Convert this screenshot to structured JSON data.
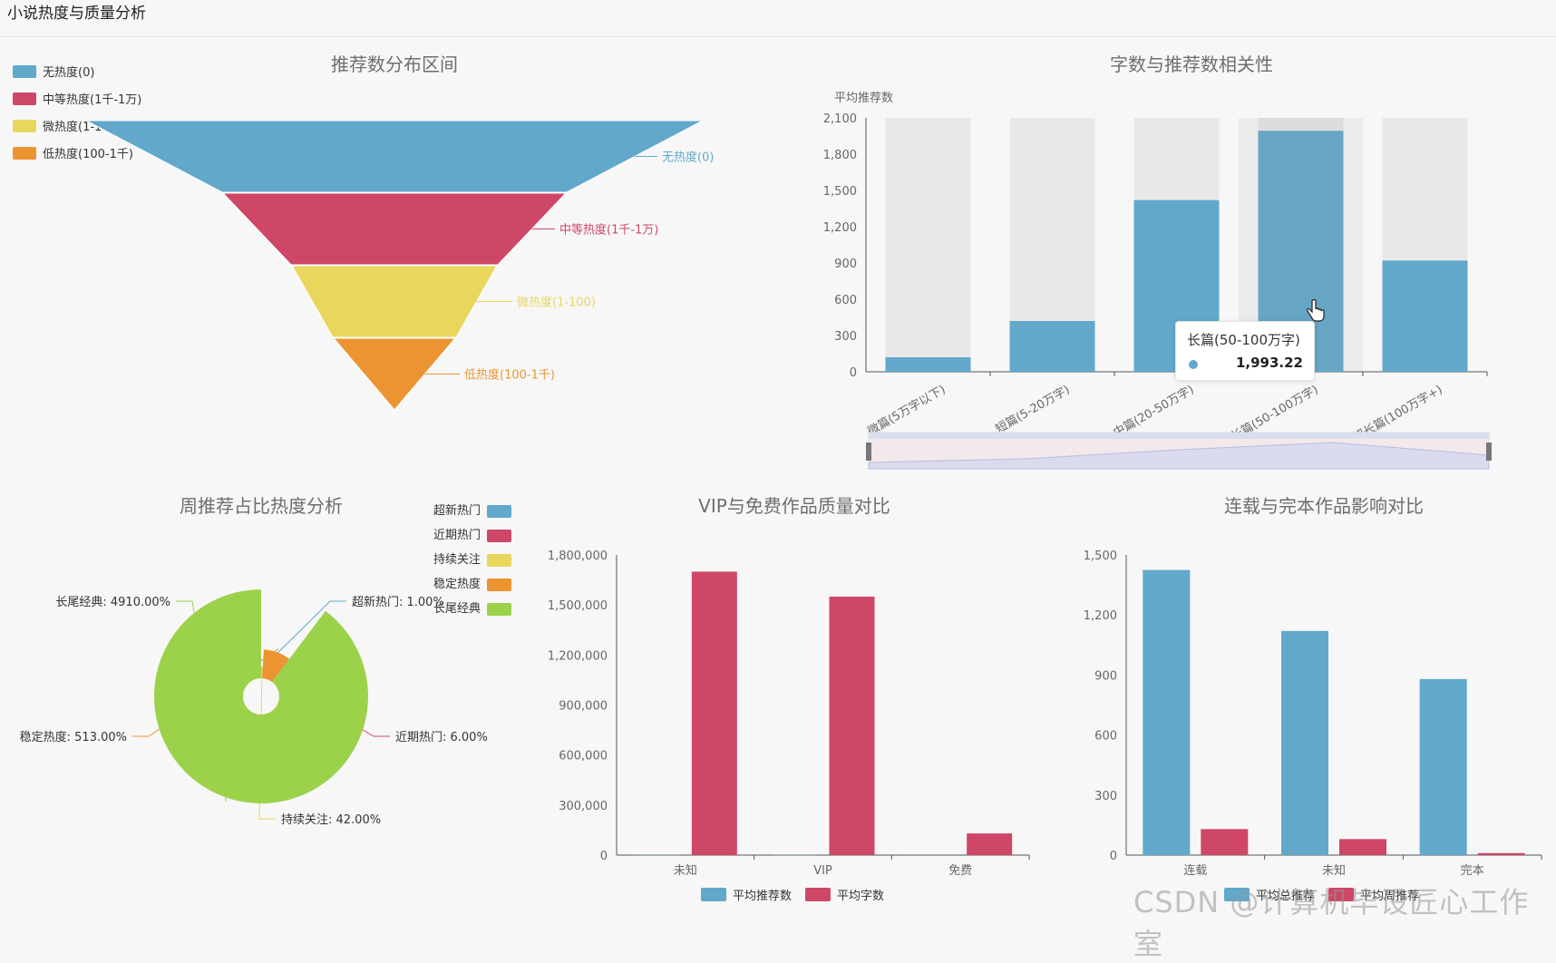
{
  "page": {
    "title": "小说热度与质量分析"
  },
  "colors": {
    "blue": "#61a8cb",
    "red": "#cf4766",
    "yellow": "#e9d65c",
    "orange": "#eb9431",
    "green": "#9bd24a"
  },
  "tooltip": {
    "name": "长篇(50-100万字)",
    "value": "1,993.22"
  },
  "watermark": "CSDN @计算机毕设匠心工作室",
  "chart_data": [
    {
      "id": "funnel",
      "type": "funnel",
      "title": "推荐数分布区间",
      "legend": [
        {
          "name": "无热度(0)",
          "color": "#61a8cb"
        },
        {
          "name": "中等热度(1千-1万)",
          "color": "#cf4766"
        },
        {
          "name": "微热度(1-100)",
          "color": "#e9d65c"
        },
        {
          "name": "低热度(100-1千)",
          "color": "#eb9431"
        }
      ],
      "stages": [
        "无热度(0)",
        "中等热度(1千-1万)",
        "微热度(1-100)",
        "低热度(100-1千)"
      ]
    },
    {
      "id": "wordcount",
      "type": "bar",
      "title": "字数与推荐数相关性",
      "ylabel": "平均推荐数",
      "ylim": [
        0,
        2100
      ],
      "yticks": [
        "0",
        "300",
        "600",
        "900",
        "1,200",
        "1,500",
        "1,800",
        "2,100"
      ],
      "categories": [
        "微篇(5万字以下)",
        "短篇(5-20万字)",
        "中篇(20-50万字)",
        "长篇(50-100万字)",
        "超长篇(100万字+)"
      ],
      "values": [
        120,
        420,
        1420,
        1993.22,
        920
      ],
      "background_bars": true,
      "datazoom": true
    },
    {
      "id": "weekly",
      "type": "pie",
      "subtype": "rose",
      "title": "周推荐占比热度分析",
      "legend": [
        "超新热门",
        "近期热门",
        "持续关注",
        "稳定热度",
        "长尾经典"
      ],
      "labels": [
        "超新热门: 1.00%",
        "近期热门: 6.00%",
        "持续关注: 42.00%",
        "稳定热度: 513.00%",
        "长尾经典: 4910.00%"
      ],
      "values": [
        1,
        6,
        42,
        513,
        4910
      ]
    },
    {
      "id": "vip",
      "type": "bar",
      "title": "VIP与免费作品质量对比",
      "categories": [
        "未知",
        "VIP",
        "免费"
      ],
      "ylim": [
        0,
        1800000
      ],
      "yticks": [
        "0",
        "300,000",
        "600,000",
        "900,000",
        "1,200,000",
        "1,500,000",
        "1,800,000"
      ],
      "series": [
        {
          "name": "平均推荐数",
          "values": [
            1500,
            1300,
            900
          ]
        },
        {
          "name": "平均字数",
          "values": [
            1700000,
            1550000,
            130000
          ]
        }
      ]
    },
    {
      "id": "serial",
      "type": "bar",
      "title": "连载与完本作品影响对比",
      "categories": [
        "连载",
        "未知",
        "完本"
      ],
      "ylim": [
        0,
        1500
      ],
      "yticks": [
        "0",
        "300",
        "600",
        "900",
        "1,200",
        "1,500"
      ],
      "series": [
        {
          "name": "平均总推荐",
          "values": [
            1425,
            1120,
            880
          ]
        },
        {
          "name": "平均周推荐",
          "values": [
            130,
            80,
            10
          ]
        }
      ]
    }
  ]
}
